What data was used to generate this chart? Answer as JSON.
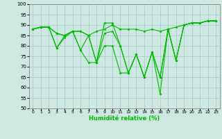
{
  "xlabel": "Humidité relative (%)",
  "xlim": [
    -0.5,
    23.5
  ],
  "ylim": [
    50,
    100
  ],
  "yticks": [
    50,
    55,
    60,
    65,
    70,
    75,
    80,
    85,
    90,
    95,
    100
  ],
  "xticks": [
    0,
    1,
    2,
    3,
    4,
    5,
    6,
    7,
    8,
    9,
    10,
    11,
    12,
    13,
    14,
    15,
    16,
    17,
    18,
    19,
    20,
    21,
    22,
    23
  ],
  "background_color": "#cce8e0",
  "grid_color": "#aacccc",
  "line_color": "#00bb00",
  "series": [
    [
      88,
      89,
      89,
      86,
      85,
      87,
      87,
      85,
      87,
      88,
      90,
      88,
      88,
      88,
      87,
      88,
      87,
      88,
      89,
      90,
      91,
      91,
      92,
      92
    ],
    [
      88,
      89,
      89,
      86,
      85,
      87,
      87,
      85,
      72,
      91,
      91,
      80,
      67,
      76,
      65,
      77,
      65,
      88,
      73,
      90,
      91,
      91,
      92,
      92
    ],
    [
      88,
      89,
      89,
      79,
      85,
      87,
      78,
      85,
      72,
      86,
      87,
      80,
      67,
      76,
      65,
      77,
      65,
      88,
      73,
      90,
      91,
      91,
      92,
      92
    ],
    [
      88,
      89,
      89,
      79,
      84,
      87,
      78,
      72,
      72,
      80,
      80,
      67,
      67,
      76,
      65,
      77,
      57,
      88,
      73,
      90,
      91,
      91,
      92,
      92
    ]
  ]
}
